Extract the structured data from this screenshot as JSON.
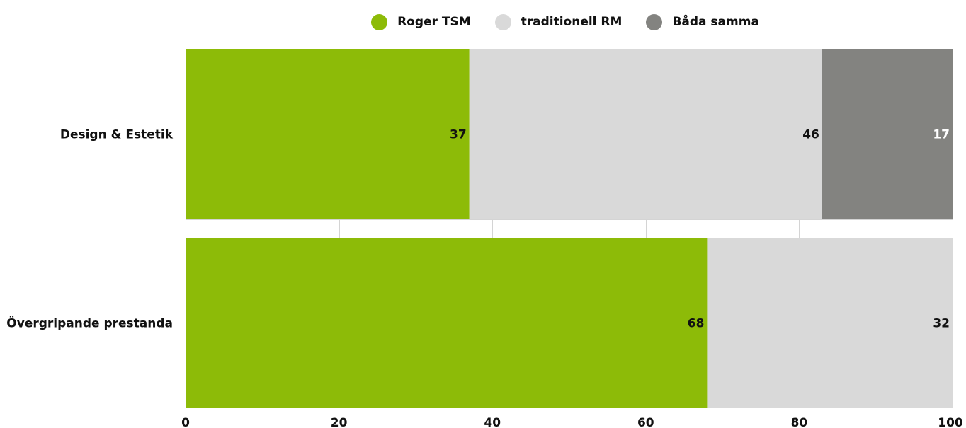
{
  "chart_data": {
    "type": "bar",
    "orientation": "horizontal",
    "stacked": true,
    "categories": [
      "Design & Estetik",
      "Övergripande prestanda"
    ],
    "series": [
      {
        "name": "Roger TSM",
        "color": "#8dbb08",
        "values": [
          37,
          68
        ]
      },
      {
        "name": "traditionell RM",
        "color": "#d9d9d9",
        "values": [
          46,
          32
        ]
      },
      {
        "name": "Båda samma",
        "color": "#838380",
        "values": [
          17,
          0
        ]
      }
    ],
    "xlim": [
      0,
      100
    ],
    "xticks": [
      0,
      20,
      40,
      60,
      80,
      100
    ],
    "data_labels": true,
    "grid": true,
    "legend_position": "top"
  }
}
